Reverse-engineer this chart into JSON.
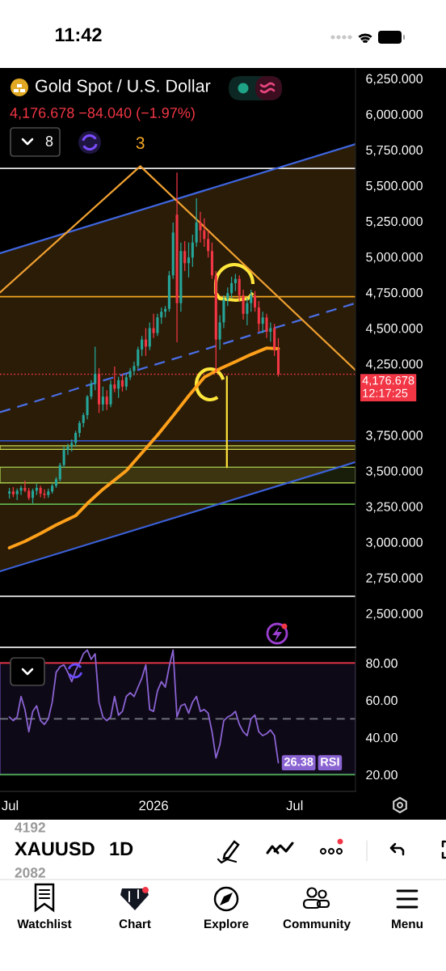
{
  "chart_data": [
    {
      "type": "candlestick",
      "title": "Gold Spot / U.S. Dollar",
      "subtitle": "4,176.678 −84.040 (−1.97%)",
      "x": [
        "2025-06-30",
        "2025-07-05",
        "2025-07-10",
        "2025-07-15",
        "2025-07-20",
        "2025-07-25",
        "2025-07-30",
        "2025-08-04",
        "2025-08-09",
        "2025-08-14",
        "2025-08-19",
        "2025-08-24",
        "2025-08-29",
        "2025-09-03",
        "2025-09-08",
        "2025-09-13",
        "2025-09-18",
        "2025-09-23",
        "2025-09-28",
        "2025-10-03",
        "2025-10-08",
        "2025-10-13",
        "2025-10-18",
        "2025-10-23",
        "2025-10-28",
        "2025-11-02",
        "2025-11-07",
        "2025-11-12",
        "2025-11-17",
        "2025-11-22",
        "2025-11-27",
        "2025-12-02",
        "2025-12-07",
        "2025-12-12",
        "2025-12-17",
        "2025-12-22",
        "2025-12-27",
        "2026-01-01",
        "2026-01-06",
        "2026-01-11",
        "2026-01-16",
        "2026-01-21",
        "2026-01-26",
        "2026-01-31",
        "2026-02-05",
        "2026-02-10",
        "2026-02-15",
        "2026-02-20",
        "2026-02-25",
        "2026-03-02",
        "2026-03-07",
        "2026-03-12",
        "2026-03-17",
        "2026-03-22",
        "2026-03-27",
        "2026-04-01",
        "2026-04-06",
        "2026-04-11",
        "2026-04-16",
        "2026-04-21",
        "2026-04-26",
        "2026-05-01",
        "2026-05-06",
        "2026-05-11",
        "2026-05-16",
        "2026-05-21",
        "2026-05-26",
        "2026-05-31",
        "2026-06-05",
        "2026-06-10"
      ],
      "ohlc": [
        [
          3340,
          3380,
          3305,
          3355
        ],
        [
          3355,
          3385,
          3315,
          3335
        ],
        [
          3335,
          3375,
          3295,
          3360
        ],
        [
          3360,
          3395,
          3330,
          3380
        ],
        [
          3380,
          3430,
          3350,
          3360
        ],
        [
          3360,
          3380,
          3295,
          3310
        ],
        [
          3310,
          3375,
          3270,
          3360
        ],
        [
          3360,
          3410,
          3330,
          3380
        ],
        [
          3380,
          3395,
          3315,
          3340
        ],
        [
          3340,
          3370,
          3305,
          3330
        ],
        [
          3330,
          3375,
          3310,
          3355
        ],
        [
          3355,
          3410,
          3340,
          3395
        ],
        [
          3395,
          3455,
          3380,
          3440
        ],
        [
          3440,
          3555,
          3425,
          3540
        ],
        [
          3540,
          3670,
          3520,
          3645
        ],
        [
          3645,
          3690,
          3610,
          3670
        ],
        [
          3670,
          3720,
          3635,
          3695
        ],
        [
          3695,
          3780,
          3670,
          3765
        ],
        [
          3765,
          3850,
          3735,
          3835
        ],
        [
          3835,
          3905,
          3805,
          3890
        ],
        [
          3890,
          4030,
          3860,
          4020
        ],
        [
          4020,
          4135,
          4000,
          4110
        ],
        [
          4110,
          4370,
          4065,
          4180
        ],
        [
          4180,
          4220,
          3905,
          3965
        ],
        [
          3965,
          4090,
          3920,
          4020
        ],
        [
          4020,
          4065,
          3925,
          3965
        ],
        [
          3965,
          4135,
          3945,
          4105
        ],
        [
          4105,
          4230,
          4050,
          4075
        ],
        [
          4075,
          4160,
          4010,
          4135
        ],
        [
          4135,
          4180,
          4055,
          4090
        ],
        [
          4090,
          4175,
          4065,
          4155
        ],
        [
          4155,
          4220,
          4135,
          4200
        ],
        [
          4200,
          4265,
          4170,
          4235
        ],
        [
          4235,
          4370,
          4215,
          4350
        ],
        [
          4350,
          4445,
          4305,
          4420
        ],
        [
          4420,
          4500,
          4305,
          4370
        ],
        [
          4370,
          4540,
          4345,
          4500
        ],
        [
          4500,
          4600,
          4430,
          4465
        ],
        [
          4465,
          4600,
          4445,
          4575
        ],
        [
          4575,
          4645,
          4530,
          4615
        ],
        [
          4615,
          4655,
          4575,
          4635
        ],
        [
          4635,
          4900,
          4615,
          4870
        ],
        [
          4870,
          5240,
          4845,
          5170
        ],
        [
          5295,
          5590,
          4400,
          4675
        ],
        [
          4675,
          5100,
          4615,
          5040
        ],
        [
          5040,
          5110,
          4900,
          4955
        ],
        [
          4955,
          5100,
          4855,
          4995
        ],
        [
          4995,
          5155,
          4930,
          5100
        ],
        [
          5100,
          5410,
          5070,
          5240
        ],
        [
          5240,
          5315,
          5100,
          5185
        ],
        [
          5185,
          5270,
          5070,
          5125
        ],
        [
          5125,
          5185,
          4995,
          5040
        ],
        [
          5040,
          5100,
          4845,
          4870
        ],
        [
          4870,
          4900,
          4190,
          4420
        ],
        [
          4420,
          4590,
          4350,
          4540
        ],
        [
          4540,
          4730,
          4500,
          4700
        ],
        [
          4700,
          4785,
          4655,
          4745
        ],
        [
          4745,
          4860,
          4710,
          4815
        ],
        [
          4815,
          4880,
          4760,
          4845
        ],
        [
          4845,
          4870,
          4690,
          4730
        ],
        [
          4730,
          4770,
          4560,
          4600
        ],
        [
          4600,
          4710,
          4520,
          4675
        ],
        [
          4675,
          4770,
          4615,
          4730
        ],
        [
          4730,
          4760,
          4615,
          4645
        ],
        [
          4645,
          4690,
          4475,
          4530
        ],
        [
          4530,
          4615,
          4465,
          4575
        ],
        [
          4575,
          4600,
          4430,
          4475
        ],
        [
          4475,
          4540,
          4405,
          4500
        ],
        [
          4500,
          4530,
          4305,
          4350
        ],
        [
          4350,
          4430,
          4160,
          4176.678
        ]
      ],
      "colors": [
        "#26a69a",
        "#f23645",
        "#26a69a",
        "#26a69a",
        "#f23645",
        "#f23645",
        "#26a69a",
        "#26a69a",
        "#f23645",
        "#f23645",
        "#26a69a",
        "#26a69a",
        "#26a69a",
        "#26a69a",
        "#26a69a",
        "#26a69a",
        "#26a69a",
        "#26a69a",
        "#26a69a",
        "#26a69a",
        "#26a69a",
        "#26a69a",
        "#26a69a",
        "#f23645",
        "#26a69a",
        "#f23645",
        "#26a69a",
        "#f23645",
        "#26a69a",
        "#f23645",
        "#26a69a",
        "#26a69a",
        "#26a69a",
        "#26a69a",
        "#26a69a",
        "#f23645",
        "#26a69a",
        "#f23645",
        "#26a69a",
        "#26a69a",
        "#26a69a",
        "#26a69a",
        "#26a69a",
        "#f23645",
        "#26a69a",
        "#f23645",
        "#26a69a",
        "#26a69a",
        "#26a69a",
        "#f23645",
        "#f23645",
        "#f23645",
        "#f23645",
        "#f23645",
        "#26a69a",
        "#26a69a",
        "#26a69a",
        "#26a69a",
        "#26a69a",
        "#f23645",
        "#f23645",
        "#26a69a",
        "#26a69a",
        "#f23645",
        "#f23645",
        "#26a69a",
        "#f23645",
        "#26a69a",
        "#f23645",
        "#f23645"
      ],
      "series": [
        {
          "type": "line",
          "color": "#3f66e0",
          "x": [
            "2025-06-18",
            "2026-09-17"
          ],
          "values": [
            5025,
            5790
          ]
        },
        {
          "type": "line",
          "color": "#3b61da",
          "x": [
            "2025-06-18",
            "2026-09-17"
          ],
          "values": [
            2795,
            3560
          ]
        },
        {
          "type": "line",
          "color": "#4a6fe8",
          "line_style": "dashed",
          "x": [
            "2025-06-18",
            "2026-09-17"
          ],
          "values": [
            3910,
            4675
          ],
          "lower": [
            2795,
            3560
          ],
          "upper": [
            5025,
            5790
          ]
        },
        {
          "type": "line",
          "color": "#f0a030",
          "x": [
            "2025-06-18",
            "2025-12-15",
            "2026-09-17"
          ],
          "values": [
            4750,
            5635,
            4205
          ]
        },
        {
          "type": "line",
          "color": "#ffa01a",
          "x": [
            "2025-06-30",
            "2025-07-20",
            "2025-08-09",
            "2025-08-29",
            "2025-09-23",
            "2025-10-08",
            "2025-10-28",
            "2025-11-12",
            "2025-11-27",
            "2025-12-17",
            "2026-01-06",
            "2026-01-26",
            "2026-02-15",
            "2026-03-07",
            "2026-03-27",
            "2026-04-16",
            "2026-05-06",
            "2026-05-26",
            "2026-06-10"
          ],
          "values": [
            2960,
            3005,
            3060,
            3120,
            3185,
            3270,
            3370,
            3435,
            3500,
            3625,
            3750,
            3885,
            4025,
            4155,
            4215,
            4265,
            4315,
            4360,
            4355
          ]
        },
        {
          "type": "line",
          "color": "#ffe63b",
          "x": [
            "2026-04-05",
            "2026-04-05"
          ],
          "values": [
            4160,
            3525
          ]
        }
      ],
      "xlim": [
        "2025-06-18",
        "2026-09-17"
      ],
      "ylim": [
        2262,
        6318
      ],
      "yticks": [
        {
          "value": 2500,
          "label": "2,500.000"
        },
        {
          "value": 2750,
          "label": "2,750.000"
        },
        {
          "value": 3000,
          "label": "3,000.000"
        },
        {
          "value": 3250,
          "label": "3,250.000"
        },
        {
          "value": 3500,
          "label": "3,500.000"
        },
        {
          "value": 3750,
          "label": "3,750.000"
        },
        {
          "value": 4250,
          "label": "4,250.000"
        },
        {
          "value": 4500,
          "label": "4,500.000"
        },
        {
          "value": 4750,
          "label": "4,750.000"
        },
        {
          "value": 5000,
          "label": "5,000.000"
        },
        {
          "value": 5250,
          "label": "5,250.000"
        },
        {
          "value": 5500,
          "label": "5,500.000"
        },
        {
          "value": 5750,
          "label": "5,750.000"
        },
        {
          "value": 6000,
          "label": "6,000.000"
        },
        {
          "value": 6250,
          "label": "6,250.000"
        }
      ],
      "ref_lines": [
        {
          "axis": "y",
          "value": 5620,
          "color": "#e6e6e6"
        },
        {
          "axis": "y",
          "value": 4720,
          "color": "#f5a623"
        },
        {
          "axis": "y",
          "value": 4176.678,
          "label": "4,176.678\n12:17:25",
          "color": "#f23645",
          "line_style": "dotted"
        },
        {
          "axis": "y",
          "value": 3710,
          "color": "#3558d6"
        },
        {
          "axis": "y",
          "value": 3265,
          "color": "#5fb04a"
        },
        {
          "axis": "y",
          "value": 2620,
          "color": "#e6e6e6"
        }
      ],
      "bands": [
        {
          "axis": "y",
          "from": 3650,
          "to": 3675,
          "color": "#c8d44e"
        },
        {
          "axis": "y",
          "from": 3415,
          "to": 3525,
          "color": "#a5c84a"
        }
      ],
      "annotations": [
        {
          "text": "3",
          "x": "2025-12-15",
          "y": 5635
        },
        "8",
        "11:42",
        "XAUUSD",
        "1D",
        "4192",
        "2082",
        "Watchlist",
        "Chart",
        "Explore",
        "Community",
        "Menu"
      ],
      "tick_labels": "y"
    },
    {
      "type": "line",
      "x": [
        "2025-06-30",
        "2025-07-05",
        "2025-07-10",
        "2025-07-15",
        "2025-07-20",
        "2025-07-25",
        "2025-07-30",
        "2025-08-04",
        "2025-08-09",
        "2025-08-14",
        "2025-08-19",
        "2025-08-24",
        "2025-08-29",
        "2025-09-03",
        "2025-09-08",
        "2025-09-13",
        "2025-09-18",
        "2025-09-23",
        "2025-09-28",
        "2025-10-03",
        "2025-10-08",
        "2025-10-13",
        "2025-10-18",
        "2025-10-23",
        "2025-10-28",
        "2025-11-02",
        "2025-11-07",
        "2025-11-12",
        "2025-11-17",
        "2025-11-22",
        "2025-11-27",
        "2025-12-02",
        "2025-12-07",
        "2025-12-12",
        "2025-12-17",
        "2025-12-22",
        "2025-12-27",
        "2026-01-01",
        "2026-01-06",
        "2026-01-11",
        "2026-01-16",
        "2026-01-21",
        "2026-01-26",
        "2026-01-31",
        "2026-02-05",
        "2026-02-10",
        "2026-02-15",
        "2026-02-20",
        "2026-02-25",
        "2026-03-02",
        "2026-03-07",
        "2026-03-12",
        "2026-03-17",
        "2026-03-22",
        "2026-03-27",
        "2026-04-01",
        "2026-04-06",
        "2026-04-11",
        "2026-04-16",
        "2026-04-21",
        "2026-04-26",
        "2026-05-01",
        "2026-05-06",
        "2026-05-11",
        "2026-05-16",
        "2026-05-21",
        "2026-05-26",
        "2026-05-31",
        "2026-06-05",
        "2026-06-10"
      ],
      "series": [
        {
          "name": "RSI",
          "color": "#8a63d2",
          "values": [
            51,
            49,
            51,
            62,
            55,
            43,
            54,
            57,
            49,
            47,
            50,
            59,
            75,
            78,
            79,
            75,
            70,
            76,
            80,
            85,
            87,
            82,
            85,
            59,
            51,
            49,
            51,
            62,
            52,
            54,
            62,
            64,
            62,
            67,
            72,
            79,
            55,
            54,
            65,
            70,
            67,
            78,
            87,
            51,
            57,
            58,
            53,
            59,
            62,
            54,
            55,
            53,
            43,
            29,
            36,
            49,
            51,
            52,
            54,
            47,
            43,
            41,
            50,
            52,
            43,
            41,
            42,
            44,
            41,
            26.38
          ],
          "value_labels": [
            null,
            null,
            null,
            null,
            null,
            null,
            null,
            null,
            null,
            null,
            null,
            null,
            null,
            null,
            null,
            null,
            null,
            null,
            null,
            null,
            null,
            null,
            null,
            null,
            null,
            null,
            null,
            null,
            null,
            null,
            null,
            null,
            null,
            null,
            null,
            null,
            null,
            null,
            null,
            null,
            null,
            null,
            null,
            null,
            null,
            null,
            null,
            null,
            null,
            null,
            null,
            null,
            null,
            null,
            null,
            null,
            null,
            null,
            null,
            null,
            null,
            null,
            null,
            null,
            null,
            null,
            null,
            null,
            null,
            "26.38"
          ]
        }
      ],
      "xlim": [
        "2025-06-18",
        "2026-09-17"
      ],
      "xticks": [
        {
          "value": "2025-07-01",
          "label": "Jul"
        },
        {
          "value": "2026-01-01",
          "label": "2026"
        },
        {
          "value": "2026-07-01",
          "label": "Jul"
        }
      ],
      "ylim": [
        11,
        88
      ],
      "yticks": [
        {
          "value": 20,
          "label": "20.00"
        },
        {
          "value": 40,
          "label": "40.00"
        },
        {
          "value": 60,
          "label": "60.00"
        },
        {
          "value": 80,
          "label": "80.00"
        }
      ],
      "ref_lines": [
        {
          "axis": "y",
          "value": 80,
          "color": "#f23645"
        },
        {
          "axis": "y",
          "value": 50,
          "color": "#787b86",
          "line_style": "dashed"
        },
        {
          "axis": "y",
          "value": 20,
          "color": "#4caf50"
        }
      ],
      "bands": [
        {
          "axis": "y",
          "from": 20,
          "to": 80,
          "color": "#5b3f99"
        }
      ]
    }
  ]
}
